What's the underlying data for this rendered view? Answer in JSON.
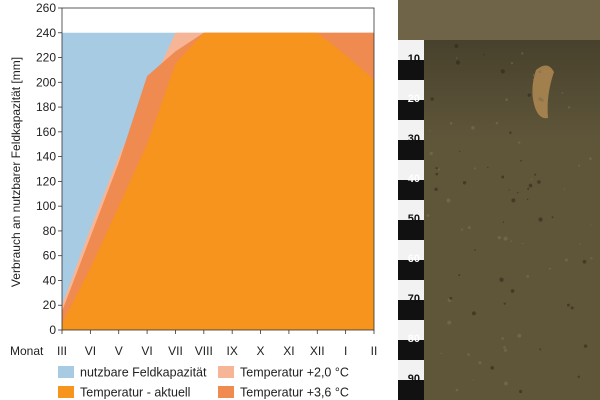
{
  "chart_data": {
    "type": "area",
    "title": "",
    "xlabel": "Monat",
    "ylabel": "Verbrauch an nutzbarer Feldkapazität [mm]",
    "categories": [
      "III",
      "VI",
      "V",
      "VI",
      "VII",
      "VIII",
      "IX",
      "X",
      "XI",
      "XII",
      "I",
      "II"
    ],
    "ylim": [
      0,
      260
    ],
    "yticks": [
      0,
      20,
      40,
      60,
      80,
      100,
      120,
      140,
      160,
      180,
      200,
      220,
      240,
      260
    ],
    "grid": false,
    "legend_position": "bottom",
    "series": [
      {
        "name": "nutzbare Feldkapazität",
        "color": "#a7cbe3",
        "values": [
          240,
          240,
          240,
          240,
          240,
          240,
          240,
          240,
          240,
          240,
          240,
          240
        ]
      },
      {
        "name": "Temperatur +2,0 °C",
        "color": "#f6b596",
        "values": [
          20,
          82,
          140,
          190,
          240,
          240,
          240,
          240,
          240,
          240,
          240,
          240
        ]
      },
      {
        "name": "Temperatur +3,6 °C",
        "color": "#ef8a50",
        "values": [
          15,
          75,
          135,
          205,
          225,
          240,
          240,
          240,
          240,
          240,
          240,
          240
        ]
      },
      {
        "name": "Temperatur - aktuell",
        "color": "#f7941d",
        "values": [
          5,
          50,
          100,
          150,
          215,
          240,
          240,
          240,
          240,
          240,
          222,
          202
        ]
      }
    ]
  },
  "soil_profile": {
    "scale_labels": [
      "10",
      "20",
      "30",
      "40",
      "50",
      "60",
      "70",
      "80",
      "90"
    ],
    "colors": {
      "litter": "#6f6448",
      "soil": "#5f563a",
      "soil_dark": "#3e3826",
      "ruler_black": "#111111",
      "ruler_white": "#f2f2f2"
    }
  }
}
